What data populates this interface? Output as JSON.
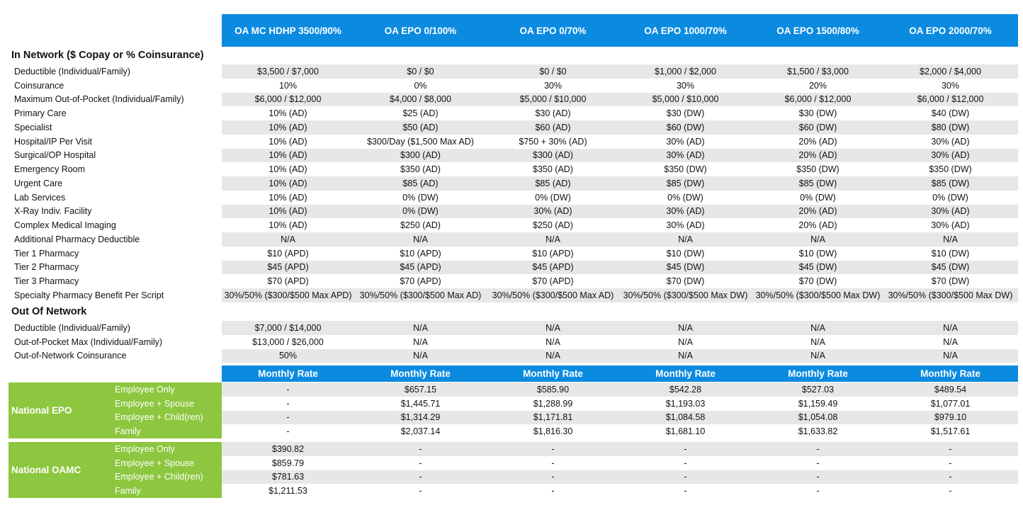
{
  "plans": [
    "OA MC HDHP 3500/90%",
    "OA EPO 0/100%",
    "OA EPO 0/70%",
    "OA EPO 1000/70%",
    "OA EPO 1500/80%",
    "OA EPO 2000/70%"
  ],
  "in_network": {
    "title": "In Network ($ Copay or % Coinsurance)",
    "rows": [
      {
        "label": "Deductible (Individual/Family)",
        "values": [
          "$3,500 / $7,000",
          "$0 / $0",
          "$0 / $0",
          "$1,000 / $2,000",
          "$1,500 / $3,000",
          "$2,000 / $4,000"
        ]
      },
      {
        "label": "Coinsurance",
        "values": [
          "10%",
          "0%",
          "30%",
          "30%",
          "20%",
          "30%"
        ]
      },
      {
        "label": "Maximum Out-of-Pocket (Individual/Family)",
        "values": [
          "$6,000 / $12,000",
          "$4,000 / $8,000",
          "$5,000 / $10,000",
          "$5,000 / $10,000",
          "$6,000 / $12,000",
          "$6,000 / $12,000"
        ]
      },
      {
        "label": "Primary Care",
        "values": [
          "10% (AD)",
          "$25 (AD)",
          "$30 (AD)",
          "$30 (DW)",
          "$30 (DW)",
          "$40 (DW)"
        ]
      },
      {
        "label": "Specialist",
        "values": [
          "10% (AD)",
          "$50 (AD)",
          "$60 (AD)",
          "$60 (DW)",
          "$60 (DW)",
          "$80 (DW)"
        ]
      },
      {
        "label": "Hospital/IP Per Visit",
        "values": [
          "10% (AD)",
          "$300/Day ($1,500 Max AD)",
          "$750 + 30% (AD)",
          "30% (AD)",
          "20% (AD)",
          "30% (AD)"
        ]
      },
      {
        "label": "Surgical/OP Hospital",
        "values": [
          "10% (AD)",
          "$300 (AD)",
          "$300 (AD)",
          "30% (AD)",
          "20% (AD)",
          "30% (AD)"
        ]
      },
      {
        "label": "Emergency Room",
        "values": [
          "10% (AD)",
          "$350 (AD)",
          "$350 (AD)",
          "$350 (DW)",
          "$350 (DW)",
          "$350 (DW)"
        ]
      },
      {
        "label": "Urgent Care",
        "values": [
          "10% (AD)",
          "$85 (AD)",
          "$85 (AD)",
          "$85 (DW)",
          "$85 (DW)",
          "$85 (DW)"
        ]
      },
      {
        "label": "Lab Services",
        "values": [
          "10% (AD)",
          "0% (DW)",
          "0% (DW)",
          "0% (DW)",
          "0% (DW)",
          "0% (DW)"
        ]
      },
      {
        "label": "X-Ray Indiv. Facility",
        "values": [
          "10% (AD)",
          "0% (DW)",
          "30% (AD)",
          "30% (AD)",
          "20% (AD)",
          "30% (AD)"
        ]
      },
      {
        "label": "Complex Medical Imaging",
        "values": [
          "10% (AD)",
          "$250 (AD)",
          "$250 (AD)",
          "30% (AD)",
          "20% (AD)",
          "30% (AD)"
        ]
      },
      {
        "label": "Additional Pharmacy Deductible",
        "values": [
          "N/A",
          "N/A",
          "N/A",
          "N/A",
          "N/A",
          "N/A"
        ]
      },
      {
        "label": "Tier 1 Pharmacy",
        "values": [
          "$10 (APD)",
          "$10 (APD)",
          "$10 (APD)",
          "$10 (DW)",
          "$10 (DW)",
          "$10 (DW)"
        ]
      },
      {
        "label": "Tier 2 Pharmacy",
        "values": [
          "$45 (APD)",
          "$45 (APD)",
          "$45 (APD)",
          "$45 (DW)",
          "$45 (DW)",
          "$45 (DW)"
        ]
      },
      {
        "label": "Tier 3 Pharmacy",
        "values": [
          "$70 (APD)",
          "$70 (APD)",
          "$70 (APD)",
          "$70 (DW)",
          "$70 (DW)",
          "$70 (DW)"
        ]
      },
      {
        "label": "Specialty Pharmacy Benefit Per Script",
        "values": [
          "30%/50% ($300/$500 Max APD)",
          "30%/50% ($300/$500 Max AD)",
          "30%/50% ($300/$500 Max AD)",
          "30%/50% ($300/$500 Max DW)",
          "30%/50% ($300/$500 Max DW)",
          "30%/50% ($300/$500 Max DW)"
        ]
      }
    ]
  },
  "out_network": {
    "title": "Out Of Network",
    "rows": [
      {
        "label": "Deductible (Individual/Family)",
        "values": [
          "$7,000 / $14,000",
          "N/A",
          "N/A",
          "N/A",
          "N/A",
          "N/A"
        ]
      },
      {
        "label": "Out-of-Pocket Max (Individual/Family)",
        "values": [
          "$13,000 / $26,000",
          "N/A",
          "N/A",
          "N/A",
          "N/A",
          "N/A"
        ]
      },
      {
        "label": "Out-of-Network Coinsurance",
        "values": [
          "50%",
          "N/A",
          "N/A",
          "N/A",
          "N/A",
          "N/A"
        ]
      }
    ]
  },
  "rates": {
    "header": "Monthly Rate",
    "groups": [
      {
        "name": "National EPO",
        "color": "#8dc63f",
        "tiers": [
          {
            "label": "Employee Only",
            "values": [
              "-",
              "$657.15",
              "$585.90",
              "$542.28",
              "$527.03",
              "$489.54"
            ]
          },
          {
            "label": "Employee + Spouse",
            "values": [
              "-",
              "$1,445.71",
              "$1,288.99",
              "$1,193.03",
              "$1,159.49",
              "$1,077.01"
            ]
          },
          {
            "label": "Employee + Child(ren)",
            "values": [
              "-",
              "$1,314.29",
              "$1,171.81",
              "$1,084.58",
              "$1,054.08",
              "$979.10"
            ]
          },
          {
            "label": "Family",
            "values": [
              "-",
              "$2,037.14",
              "$1,816.30",
              "$1,681.10",
              "$1,633.82",
              "$1,517.61"
            ]
          }
        ]
      },
      {
        "name": "National OAMC",
        "color": "#8dc63f",
        "tiers": [
          {
            "label": "Employee Only",
            "values": [
              "$390.82",
              "-",
              "-",
              "-",
              "-",
              "-"
            ]
          },
          {
            "label": "Employee + Spouse",
            "values": [
              "$859.79",
              "-",
              "-",
              "-",
              "-",
              "-"
            ]
          },
          {
            "label": "Employee + Child(ren)",
            "values": [
              "$781.63",
              "-",
              "-",
              "-",
              "-",
              "-"
            ]
          },
          {
            "label": "Family",
            "values": [
              "$1,211.53",
              "-",
              "-",
              "-",
              "-",
              "-"
            ]
          }
        ]
      }
    ]
  },
  "colors": {
    "header_blue": "#0b8be0",
    "group_green": "#8dc63f",
    "row_shade": "#e7e7e7"
  }
}
